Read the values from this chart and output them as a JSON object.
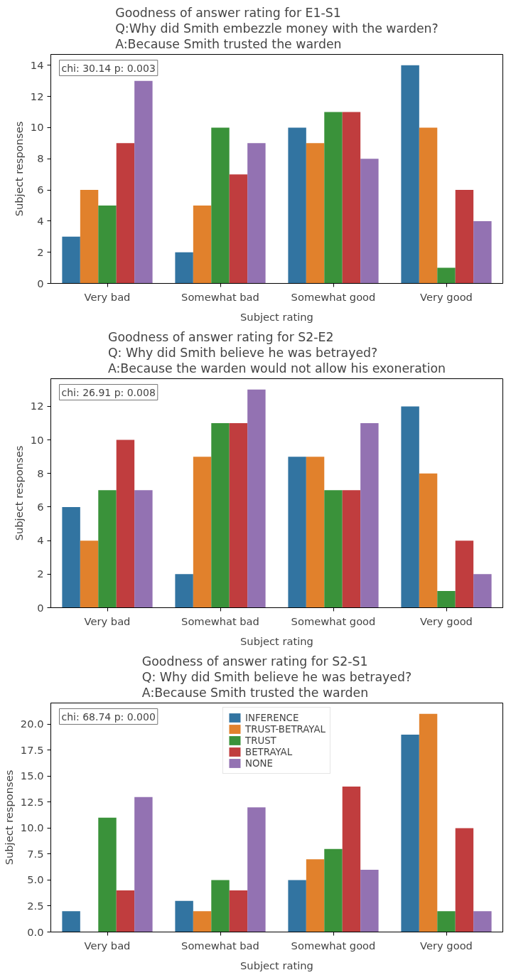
{
  "chart_data": [
    {
      "type": "bar",
      "title": "Goodness of answer rating for E1-S1\nQ:Why did Smith embezzle money with the warden?\nA:Because Smith trusted the warden",
      "xlabel": "Subject rating",
      "ylabel": "Subject responses",
      "categories": [
        "Very bad",
        "Somewhat bad",
        "Somewhat good",
        "Very good"
      ],
      "annotations": [
        "chi: 30.14 p: 0.003"
      ],
      "ylim": [
        0,
        14.7
      ],
      "yticks": [
        0,
        2,
        4,
        6,
        8,
        10,
        12,
        14
      ],
      "legend": false,
      "series": [
        {
          "color": "#3274a1",
          "values": [
            3,
            2,
            10,
            14
          ]
        },
        {
          "color": "#e1812c",
          "values": [
            6,
            5,
            9,
            10
          ]
        },
        {
          "color": "#3a923a",
          "values": [
            5,
            10,
            11,
            1
          ]
        },
        {
          "color": "#c03d3e",
          "values": [
            9,
            7,
            11,
            6
          ]
        },
        {
          "color": "#9372b2",
          "values": [
            13,
            9,
            8,
            4
          ]
        }
      ]
    },
    {
      "type": "bar",
      "title": "Goodness of answer rating for S2-E2\nQ: Why did Smith believe he was betrayed?\nA:Because the warden would not allow his exoneration",
      "xlabel": "Subject rating",
      "ylabel": "Subject responses",
      "categories": [
        "Very bad",
        "Somewhat bad",
        "Somewhat good",
        "Very good"
      ],
      "annotations": [
        "chi: 26.91 p: 0.008"
      ],
      "ylim": [
        0,
        13.65
      ],
      "yticks": [
        0,
        2,
        4,
        6,
        8,
        10,
        12
      ],
      "legend": false,
      "series": [
        {
          "color": "#3274a1",
          "values": [
            6,
            2,
            9,
            12
          ]
        },
        {
          "color": "#e1812c",
          "values": [
            4,
            9,
            9,
            8
          ]
        },
        {
          "color": "#3a923a",
          "values": [
            7,
            11,
            7,
            1
          ]
        },
        {
          "color": "#c03d3e",
          "values": [
            10,
            11,
            7,
            4
          ]
        },
        {
          "color": "#9372b2",
          "values": [
            7,
            13,
            11,
            2
          ]
        }
      ]
    },
    {
      "type": "bar",
      "title": "Goodness of answer rating for S2-S1\nQ: Why did Smith believe he was betrayed?\nA:Because Smith trusted the warden",
      "xlabel": "Subject rating",
      "ylabel": "Subject responses",
      "categories": [
        "Very bad",
        "Somewhat bad",
        "Somewhat good",
        "Very good"
      ],
      "annotations": [
        "chi: 68.74 p: 0.000"
      ],
      "ylim": [
        0,
        22.05
      ],
      "yticks": [
        {
          "value": 0,
          "label": "0.0"
        },
        {
          "value": 2.5,
          "label": "2.5"
        },
        {
          "value": 5,
          "label": "5.0"
        },
        {
          "value": 7.5,
          "label": "7.5"
        },
        {
          "value": 10,
          "label": "10.0"
        },
        {
          "value": 12.5,
          "label": "12.5"
        },
        {
          "value": 15,
          "label": "15.0"
        },
        {
          "value": 17.5,
          "label": "17.5"
        },
        {
          "value": 20,
          "label": "20.0"
        }
      ],
      "legend": "top",
      "series": [
        {
          "name": "INFERENCE",
          "color": "#3274a1",
          "values": [
            2,
            3,
            5,
            19
          ]
        },
        {
          "name": "TRUST-BETRAYAL",
          "color": "#e1812c",
          "values": [
            0,
            2,
            7,
            21
          ]
        },
        {
          "name": "TRUST",
          "color": "#3a923a",
          "values": [
            11,
            5,
            8,
            2
          ]
        },
        {
          "name": "BETRAYAL",
          "color": "#c03d3e",
          "values": [
            4,
            4,
            14,
            10
          ]
        },
        {
          "name": "NONE",
          "color": "#9372b2",
          "values": [
            13,
            12,
            6,
            2
          ]
        }
      ]
    }
  ]
}
